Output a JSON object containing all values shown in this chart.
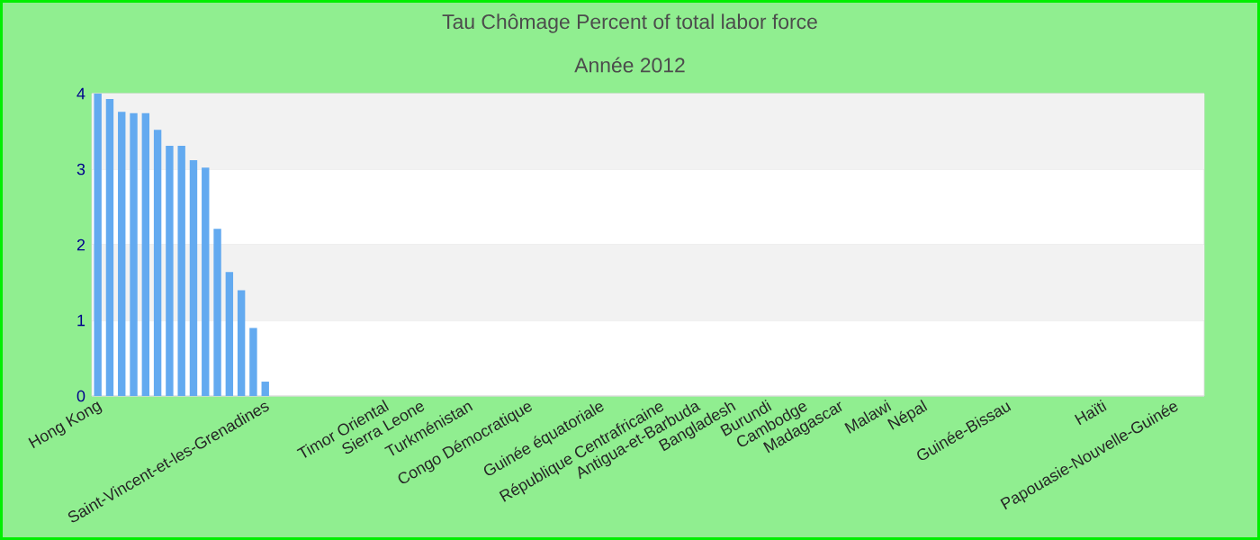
{
  "chart_data": {
    "type": "bar",
    "title": "Tau Chômage  Percent of total labor force",
    "subtitle": "Année 2012",
    "categories": [
      "Hong Kong",
      null,
      null,
      null,
      null,
      null,
      null,
      null,
      null,
      null,
      null,
      null,
      null,
      null,
      "Saint-Vincent-et-les-Grenadines",
      null,
      null,
      null,
      null,
      null,
      null,
      null,
      null,
      null,
      "Timor Oriental",
      null,
      null,
      "Sierra Leone",
      null,
      null,
      null,
      "Turkménistan",
      null,
      null,
      null,
      null,
      "Congo Démocratique",
      null,
      null,
      null,
      null,
      null,
      "Guinée équatoriale",
      null,
      null,
      null,
      null,
      "République Centrafricaine",
      null,
      null,
      "Antigua-et-Barbuda",
      null,
      null,
      "Bangladesh",
      null,
      null,
      "Burundi",
      null,
      null,
      "Cambodge",
      null,
      null,
      "Madagascar",
      null,
      null,
      null,
      "Malawi",
      null,
      null,
      "Népal",
      null,
      null,
      null,
      null,
      null,
      null,
      "Guinée-Bissau",
      null,
      null,
      null,
      null,
      null,
      null,
      null,
      "Haïti",
      null,
      null,
      null,
      null,
      null,
      "Papouasie-Nouvelle-Guinée",
      null,
      null
    ],
    "values": [
      4.0,
      3.93,
      3.76,
      3.74,
      3.74,
      3.52,
      3.31,
      3.31,
      3.12,
      3.02,
      2.21,
      1.64,
      1.4,
      0.9,
      0.19,
      null,
      null,
      null,
      null,
      null,
      null,
      null,
      null,
      null,
      null,
      null,
      null,
      null,
      null,
      null,
      null,
      null,
      null,
      null,
      null,
      null,
      null,
      null,
      null,
      null,
      null,
      null,
      null,
      null,
      null,
      null,
      null,
      null,
      null,
      null,
      null,
      null,
      null,
      null,
      null,
      null,
      null,
      null,
      null,
      null,
      null,
      null,
      null,
      null,
      null,
      null,
      null,
      null,
      null,
      null,
      null,
      null,
      null,
      null,
      null,
      null,
      null,
      null,
      null,
      null,
      null,
      null,
      null,
      null,
      null,
      null,
      null,
      null,
      null,
      null,
      null,
      null,
      null
    ],
    "color": "#63aaf0",
    "ylim": [
      0,
      4
    ],
    "yticks": [
      0,
      1,
      2,
      3,
      4
    ],
    "grid": "y"
  }
}
